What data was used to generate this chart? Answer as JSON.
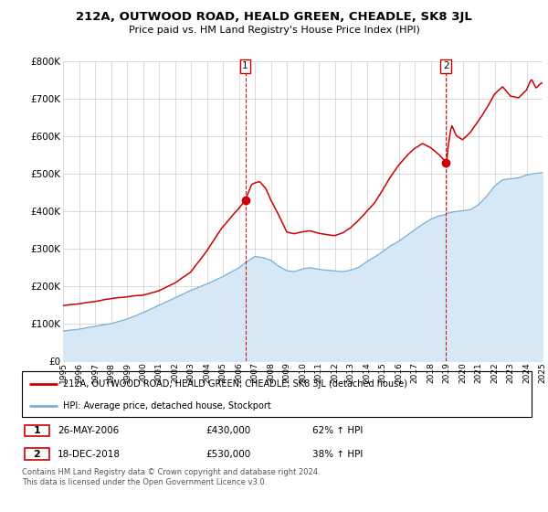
{
  "title": "212A, OUTWOOD ROAD, HEALD GREEN, CHEADLE, SK8 3JL",
  "subtitle": "Price paid vs. HM Land Registry's House Price Index (HPI)",
  "property_label": "212A, OUTWOOD ROAD, HEALD GREEN, CHEADLE, SK8 3JL (detached house)",
  "hpi_label": "HPI: Average price, detached house, Stockport",
  "sale1_date": "26-MAY-2006",
  "sale1_price": "£430,000",
  "sale1_hpi": "62% ↑ HPI",
  "sale2_date": "18-DEC-2018",
  "sale2_price": "£530,000",
  "sale2_hpi": "38% ↑ HPI",
  "footer": "Contains HM Land Registry data © Crown copyright and database right 2024.\nThis data is licensed under the Open Government Licence v3.0.",
  "property_color": "#cc0000",
  "hpi_color": "#7aaed6",
  "hpi_fill_color": "#d6e8f5",
  "sale1_x": 2006.4,
  "sale1_y": 430000,
  "sale2_x": 2018.96,
  "sale2_y": 530000,
  "ylim": [
    0,
    800000
  ],
  "xlim_start": 1995,
  "xlim_end": 2025,
  "yticks": [
    0,
    100000,
    200000,
    300000,
    400000,
    500000,
    600000,
    700000,
    800000
  ],
  "xticks": [
    1995,
    1996,
    1997,
    1998,
    1999,
    2000,
    2001,
    2002,
    2003,
    2004,
    2005,
    2006,
    2007,
    2008,
    2009,
    2010,
    2011,
    2012,
    2013,
    2014,
    2015,
    2016,
    2017,
    2018,
    2019,
    2020,
    2021,
    2022,
    2023,
    2024,
    2025
  ],
  "grid_color": "#cccccc",
  "background_color": "#ffffff"
}
